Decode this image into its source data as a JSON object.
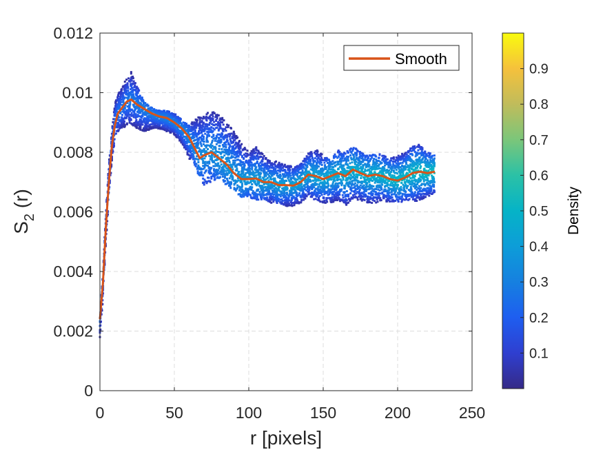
{
  "chart_data": {
    "type": "scatter",
    "title": "",
    "xlabel": "r [pixels]",
    "ylabel_main": "S",
    "ylabel_sub": "2",
    "ylabel_tail": " (r)",
    "xlim": [
      0,
      250
    ],
    "ylim": [
      0,
      0.012
    ],
    "xticks": [
      0,
      50,
      100,
      150,
      200,
      250
    ],
    "xtick_labels": [
      "0",
      "50",
      "100",
      "150",
      "200",
      "250"
    ],
    "yticks": [
      0,
      0.002,
      0.004,
      0.006,
      0.008,
      0.01,
      0.012
    ],
    "ytick_labels": [
      "0",
      "0.002",
      "0.004",
      "0.006",
      "0.008",
      "0.01",
      "0.012"
    ],
    "grid": true,
    "legend": {
      "position": "top-right",
      "entries": [
        "Smooth"
      ]
    },
    "series": [
      {
        "name": "Smooth",
        "type": "line",
        "color": "#D95319",
        "x": [
          0,
          2,
          4,
          6,
          8,
          10,
          12,
          15,
          18,
          21,
          25,
          30,
          35,
          40,
          45,
          50,
          55,
          60,
          63,
          67,
          70,
          75,
          80,
          85,
          90,
          95,
          100,
          105,
          110,
          115,
          120,
          125,
          130,
          135,
          140,
          145,
          150,
          155,
          160,
          165,
          170,
          175,
          180,
          185,
          190,
          195,
          200,
          205,
          210,
          215,
          220,
          225
        ],
        "y": [
          0.0024,
          0.0036,
          0.0055,
          0.007,
          0.0082,
          0.0089,
          0.0093,
          0.0095,
          0.0097,
          0.00977,
          0.0096,
          0.00945,
          0.0093,
          0.0092,
          0.00915,
          0.009,
          0.0088,
          0.0085,
          0.0082,
          0.0078,
          0.0079,
          0.008,
          0.0078,
          0.0076,
          0.0073,
          0.0071,
          0.0071,
          0.00712,
          0.007,
          0.007,
          0.0069,
          0.0069,
          0.00688,
          0.007,
          0.00725,
          0.0072,
          0.0071,
          0.0072,
          0.0073,
          0.0072,
          0.00742,
          0.0073,
          0.0072,
          0.00725,
          0.0072,
          0.0071,
          0.00705,
          0.00715,
          0.0073,
          0.00735,
          0.0073,
          0.00735
        ]
      },
      {
        "name": "",
        "type": "density-scatter",
        "band_x": [
          0,
          2,
          4,
          6,
          8,
          10,
          12,
          15,
          18,
          21,
          25,
          30,
          35,
          40,
          45,
          50,
          55,
          60,
          63,
          67,
          70,
          75,
          80,
          85,
          90,
          95,
          100,
          105,
          110,
          115,
          120,
          125,
          130,
          135,
          140,
          145,
          150,
          155,
          160,
          165,
          170,
          175,
          180,
          185,
          190,
          195,
          200,
          205,
          210,
          215,
          220,
          225
        ],
        "band_upper": [
          0.0025,
          0.004,
          0.006,
          0.0076,
          0.0087,
          0.0096,
          0.01,
          0.0102,
          0.0105,
          0.0107,
          0.0102,
          0.0097,
          0.0095,
          0.0094,
          0.0094,
          0.0093,
          0.0091,
          0.0089,
          0.0091,
          0.0092,
          0.0093,
          0.0094,
          0.0093,
          0.009,
          0.0087,
          0.0083,
          0.008,
          0.0082,
          0.0079,
          0.0077,
          0.0077,
          0.0076,
          0.0075,
          0.0076,
          0.008,
          0.0081,
          0.0079,
          0.0077,
          0.0081,
          0.008,
          0.0082,
          0.008,
          0.0079,
          0.008,
          0.0079,
          0.0078,
          0.0079,
          0.008,
          0.0082,
          0.0083,
          0.008,
          0.0079
        ],
        "band_lower": [
          0.0018,
          0.003,
          0.005,
          0.0064,
          0.0077,
          0.0084,
          0.0087,
          0.0088,
          0.0089,
          0.0089,
          0.0088,
          0.0087,
          0.0088,
          0.0088,
          0.0087,
          0.0086,
          0.0083,
          0.0078,
          0.0075,
          0.0072,
          0.0069,
          0.007,
          0.0071,
          0.0069,
          0.0067,
          0.0065,
          0.0065,
          0.0064,
          0.0064,
          0.0063,
          0.0063,
          0.0062,
          0.0062,
          0.0063,
          0.0065,
          0.0064,
          0.0063,
          0.0063,
          0.0064,
          0.0062,
          0.0064,
          0.0064,
          0.0063,
          0.0063,
          0.0064,
          0.0063,
          0.0063,
          0.0063,
          0.0063,
          0.0064,
          0.0065,
          0.0066
        ]
      }
    ],
    "colorbar": {
      "label": "Density",
      "ticks": [
        0.1,
        0.2,
        0.3,
        0.4,
        0.5,
        0.6,
        0.7,
        0.8,
        0.9
      ],
      "tick_labels": [
        "0.1",
        "0.2",
        "0.3",
        "0.4",
        "0.5",
        "0.6",
        "0.7",
        "0.8",
        "0.9"
      ],
      "range": [
        0,
        1
      ],
      "colormap": "parula"
    }
  }
}
